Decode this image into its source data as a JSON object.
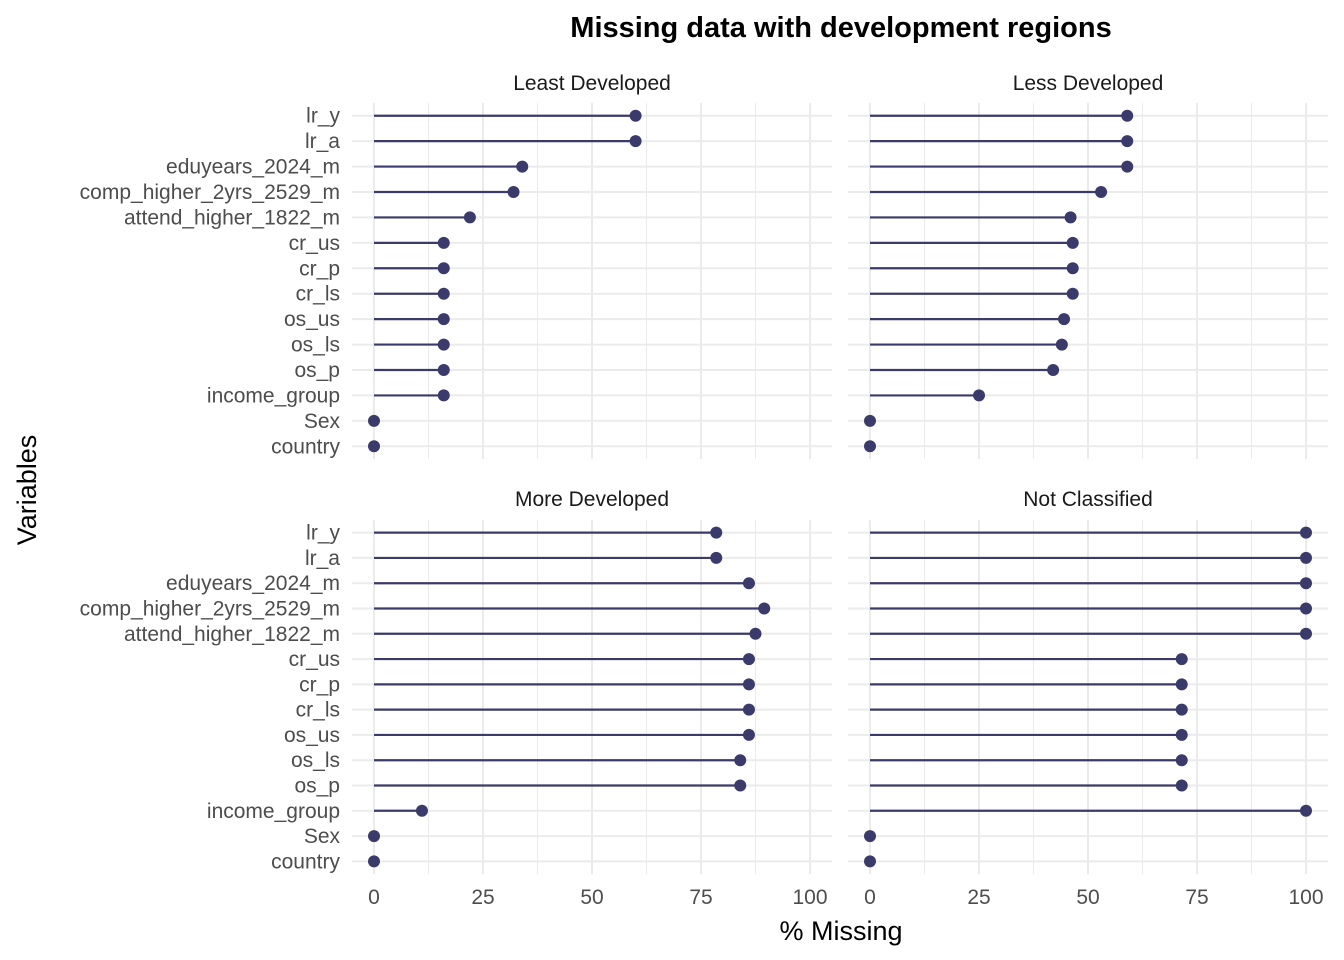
{
  "chart_data": {
    "type": "lollipop",
    "title": "Missing data with development regions",
    "xlabel": "% Missing",
    "ylabel": "Variables",
    "xlim": [
      0,
      100
    ],
    "x_ticks": [
      0,
      25,
      50,
      75,
      100
    ],
    "grid": true,
    "colors": {
      "mark": "#3b3b6b",
      "grid": "#ebebeb"
    },
    "categories": [
      "lr_y",
      "lr_a",
      "eduyears_2024_m",
      "comp_higher_2yrs_2529_m",
      "attend_higher_1822_m",
      "cr_us",
      "cr_p",
      "cr_ls",
      "os_us",
      "os_ls",
      "os_p",
      "income_group",
      "Sex",
      "country"
    ],
    "panels": [
      {
        "name": "Least Developed",
        "values": [
          60,
          60,
          34,
          32,
          22,
          16,
          16,
          16,
          16,
          16,
          16,
          16,
          0,
          0
        ]
      },
      {
        "name": "Less Developed",
        "values": [
          59,
          59,
          59,
          53,
          46,
          46.5,
          46.5,
          46.5,
          44.5,
          44,
          42,
          25,
          0,
          0
        ]
      },
      {
        "name": "More Developed",
        "values": [
          78.5,
          78.5,
          86,
          89.5,
          87.5,
          86,
          86,
          86,
          86,
          84,
          84,
          11,
          0,
          0
        ]
      },
      {
        "name": "Not Classified",
        "values": [
          100,
          100,
          100,
          100,
          100,
          71.5,
          71.5,
          71.5,
          71.5,
          71.5,
          71.5,
          100,
          0,
          0
        ]
      }
    ]
  }
}
